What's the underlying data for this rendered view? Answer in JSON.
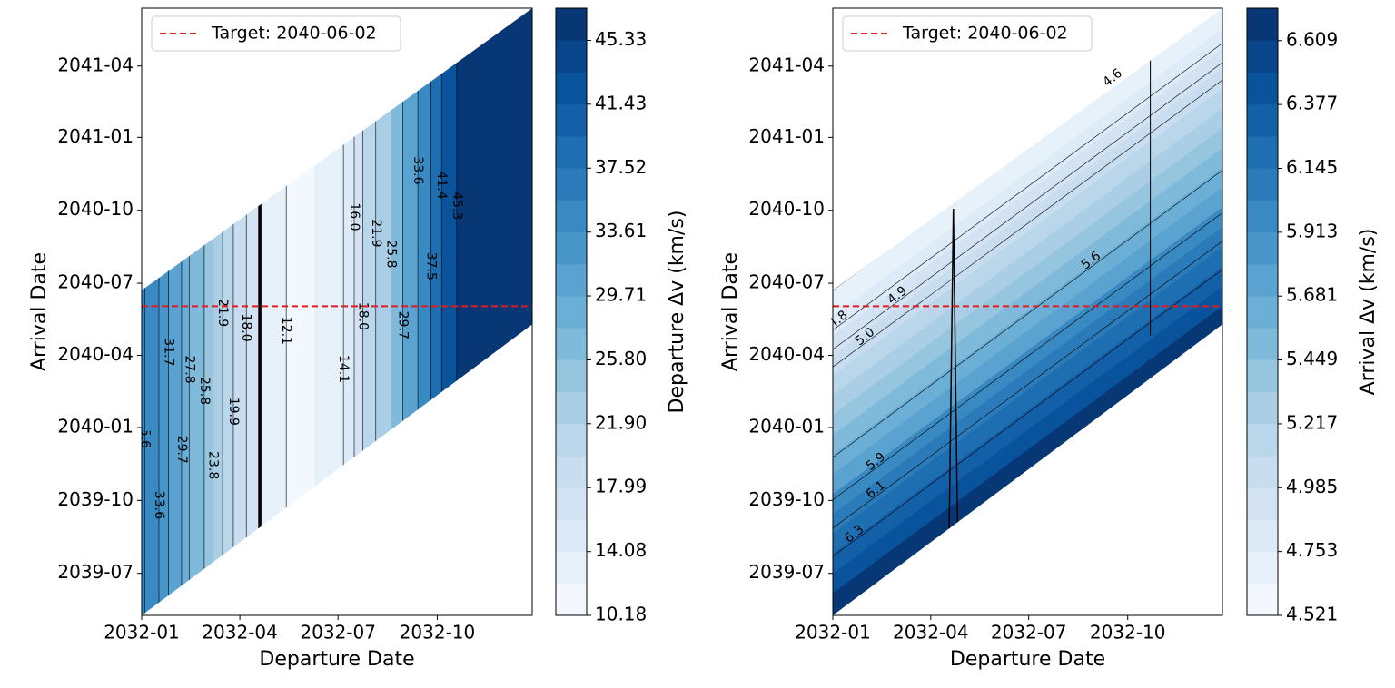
{
  "chart_data": [
    {
      "type": "contour",
      "xlabel": "Departure Date",
      "ylabel": "Arrival Date",
      "xlim": [
        0,
        362
      ],
      "xticks": [
        {
          "value": 0,
          "label": "2032-01"
        },
        {
          "value": 91,
          "label": "2032-04"
        },
        {
          "value": 182,
          "label": "2032-07"
        },
        {
          "value": 274,
          "label": "2032-10"
        }
      ],
      "ylim": [
        -53,
        713
      ],
      "yticks": [
        {
          "value": 0,
          "label": "2039-07"
        },
        {
          "value": 92,
          "label": "2039-10"
        },
        {
          "value": 184,
          "label": "2040-01"
        },
        {
          "value": 275,
          "label": "2040-04"
        },
        {
          "value": 366,
          "label": "2040-07"
        },
        {
          "value": 458,
          "label": "2040-10"
        },
        {
          "value": 550,
          "label": "2041-01"
        },
        {
          "value": 640,
          "label": "2041-04"
        }
      ],
      "field": {
        "x": [
          0,
          16,
          25,
          37,
          44,
          58,
          66,
          75,
          85,
          97,
          108,
          110,
          134,
          160,
          187,
          197,
          205,
          217,
          231,
          242,
          256,
          268,
          278,
          292,
          320,
          362
        ],
        "values": [
          36,
          33.6,
          31.7,
          29.7,
          27.8,
          25.8,
          23.8,
          21.9,
          19.9,
          18,
          16.5,
          13,
          12.1,
          11,
          14.1,
          16,
          18,
          21.9,
          25.8,
          29.7,
          33.6,
          37.5,
          41.4,
          45.3,
          46.5,
          47.2
        ]
      },
      "contour_labels": [
        {
          "value": 35.6,
          "label": "35.6",
          "x": 3
        },
        {
          "value": 33.6,
          "label": "33.6",
          "x": 16
        },
        {
          "value": 31.7,
          "label": "31.7",
          "x": 25
        },
        {
          "value": 29.7,
          "label": "29.7",
          "x": 37
        },
        {
          "value": 27.8,
          "label": "27.8",
          "x": 44
        },
        {
          "value": 25.8,
          "label": "25.8",
          "x": 58
        },
        {
          "value": 23.8,
          "label": "23.8",
          "x": 66
        },
        {
          "value": 21.9,
          "label": "21.9",
          "x": 75
        },
        {
          "value": 19.9,
          "label": "19.9",
          "x": 85
        },
        {
          "value": 18.0,
          "label": "18.0",
          "x": 97
        },
        {
          "value": 12.1,
          "label": "12.1",
          "x": 134
        },
        {
          "value": 14.1,
          "label": "14.1",
          "x": 187
        },
        {
          "value": 16.0,
          "label": "16.0",
          "x": 197
        },
        {
          "value": 18.0,
          "label": "18.0",
          "x": 205
        },
        {
          "value": 21.9,
          "label": "21.9",
          "x": 217
        },
        {
          "value": 25.8,
          "label": "25.8",
          "x": 231
        },
        {
          "value": 29.7,
          "label": "29.7",
          "x": 242
        },
        {
          "value": 33.6,
          "label": "33.6",
          "x": 256
        },
        {
          "value": 37.5,
          "label": "37.5",
          "x": 268
        },
        {
          "value": 41.4,
          "label": "41.4",
          "x": 278
        },
        {
          "value": 45.3,
          "label": "45.3",
          "x": 292
        }
      ],
      "hline": {
        "y": 337,
        "name": "Target: 2040-06-02",
        "color": "#e41a1c"
      },
      "colorbar": {
        "label": "Departure Δv (km/s)",
        "clim": [
          10.18,
          47.3
        ],
        "levels": 19,
        "ticks": [
          {
            "value": 10.18,
            "label": "10.18"
          },
          {
            "value": 14.08,
            "label": "14.08"
          },
          {
            "value": 17.99,
            "label": "17.99"
          },
          {
            "value": 21.9,
            "label": "21.90"
          },
          {
            "value": 25.8,
            "label": "25.80"
          },
          {
            "value": 29.71,
            "label": "29.71"
          },
          {
            "value": 33.61,
            "label": "33.61"
          },
          {
            "value": 37.52,
            "label": "37.52"
          },
          {
            "value": 41.43,
            "label": "41.43"
          },
          {
            "value": 45.33,
            "label": "45.33"
          }
        ]
      },
      "legend": "upper left"
    },
    {
      "type": "contour_tof",
      "xlabel": "Departure Date",
      "ylabel": "Arrival Date",
      "xlim": [
        0,
        362
      ],
      "xticks": [
        {
          "value": 0,
          "label": "2032-01"
        },
        {
          "value": 91,
          "label": "2032-04"
        },
        {
          "value": 182,
          "label": "2032-07"
        },
        {
          "value": 274,
          "label": "2032-10"
        }
      ],
      "ylim": [
        -53,
        713
      ],
      "yticks": [
        {
          "value": 0,
          "label": "2039-07"
        },
        {
          "value": 92,
          "label": "2039-10"
        },
        {
          "value": 184,
          "label": "2040-01"
        },
        {
          "value": 275,
          "label": "2040-04"
        },
        {
          "value": 366,
          "label": "2040-07"
        },
        {
          "value": 458,
          "label": "2040-10"
        },
        {
          "value": 550,
          "label": "2041-01"
        },
        {
          "value": 640,
          "label": "2041-04"
        }
      ],
      "field": {
        "tof": [
          -53,
          -25,
          0,
          25,
          50,
          75,
          100,
          125,
          150,
          175,
          200,
          225,
          250,
          275,
          300,
          325,
          357
        ],
        "values": [
          6.72,
          6.55,
          6.42,
          6.28,
          6.14,
          6.0,
          5.86,
          5.72,
          5.58,
          5.44,
          5.3,
          5.17,
          5.05,
          4.93,
          4.83,
          4.72,
          4.6
        ]
      },
      "contour_labels": [
        {
          "value": 6.3,
          "label": "6.3",
          "x": 20
        },
        {
          "value": 6.1,
          "label": "6.1",
          "x": 40
        },
        {
          "value": 5.9,
          "label": "5.9",
          "x": 40
        },
        {
          "value": 5.6,
          "label": "5.6",
          "x": 240
        },
        {
          "value": 5.0,
          "label": "5.0",
          "x": 30
        },
        {
          "value": 4.9,
          "label": "4.9",
          "x": 60
        },
        {
          "value": 4.8,
          "label": "4.8",
          "x": 5
        },
        {
          "value": 4.6,
          "label": "4.6",
          "x": 260
        }
      ],
      "hline": {
        "y": 337,
        "name": "Target: 2040-06-02",
        "color": "#e41a1c"
      },
      "colorbar": {
        "label": "Arrival Δv (km/s)",
        "clim": [
          4.521,
          6.727
        ],
        "levels": 19,
        "ticks": [
          4.521,
          4.753,
          4.985,
          5.217,
          5.449,
          5.681,
          5.913,
          6.145,
          6.377,
          6.609
        ]
      },
      "legend": "upper left"
    }
  ]
}
